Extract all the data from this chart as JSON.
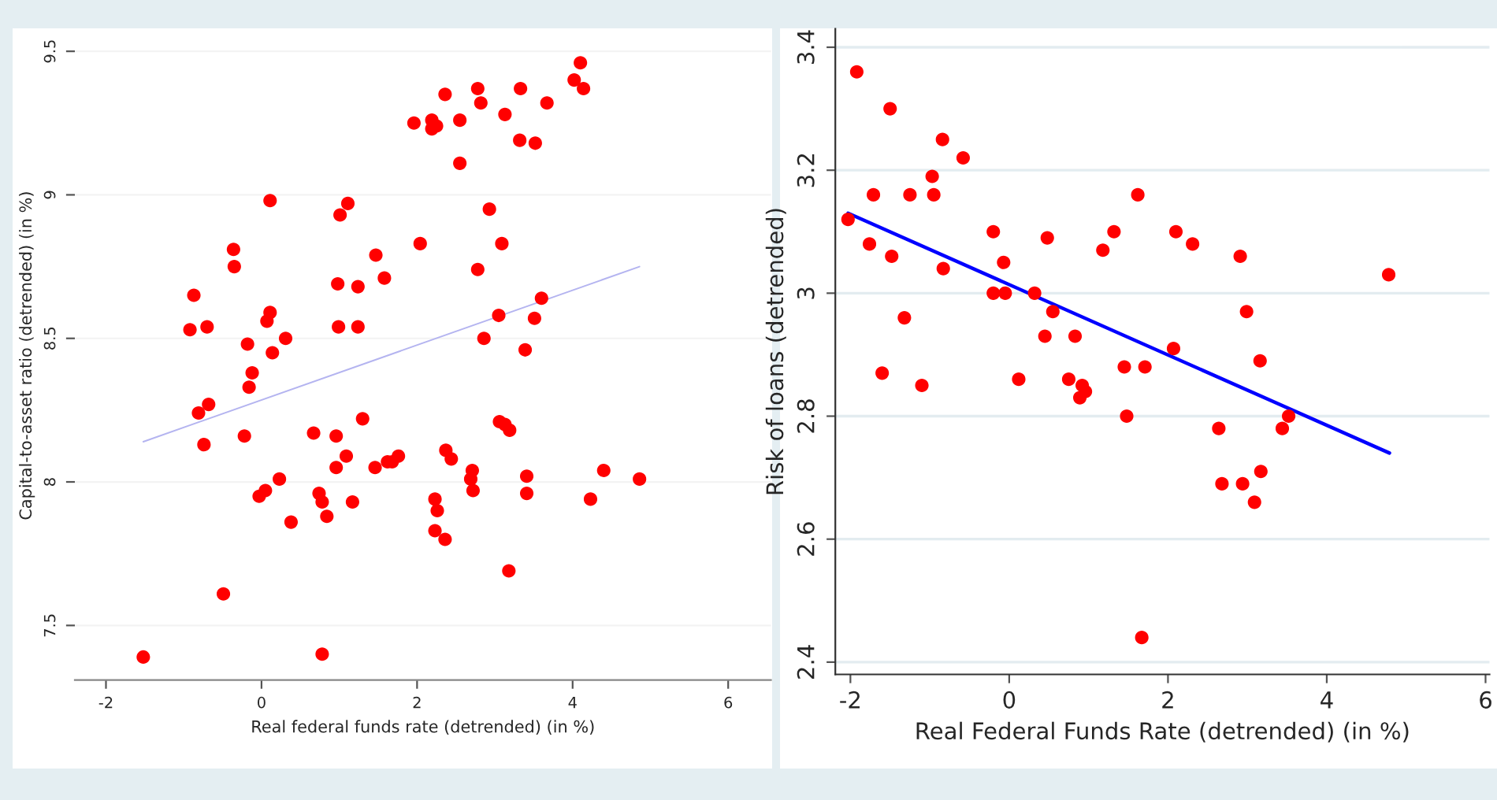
{
  "chart_data": [
    {
      "type": "scatter",
      "xlabel": "Real federal funds rate (detrended) (in %)",
      "ylabel": "Capital-to-asset ratio (detrended) (in %)",
      "xlim": [
        -2.4,
        6.55
      ],
      "ylim": [
        7.31,
        9.57
      ],
      "xticks": [
        -2,
        0,
        2,
        4,
        6
      ],
      "yticks": [
        7.5,
        8,
        8.5,
        9,
        9.5
      ],
      "grid": "y",
      "legend": false,
      "series": [
        {
          "marker": "circle",
          "color": "#ff0000",
          "x": [
            4.1,
            4.02,
            4.14,
            2.36,
            2.78,
            2.82,
            3.33,
            3.67,
            1.96,
            2.19,
            2.19,
            2.25,
            2.55,
            3.13,
            3.32,
            3.52,
            2.55,
            0.11,
            1.11,
            1.01,
            2.93,
            -0.36,
            -0.35,
            2.04,
            3.09,
            1.47,
            1.58,
            2.78,
            -0.87,
            0.98,
            1.24,
            3.6,
            3.05,
            3.51,
            -0.92,
            -0.7,
            0.11,
            0.07,
            0.99,
            1.24,
            0.31,
            -0.18,
            0.14,
            2.86,
            3.39,
            -0.12,
            -0.16,
            -0.81,
            -0.68,
            -0.74,
            -0.22,
            0.67,
            0.96,
            1.3,
            1.09,
            0.96,
            1.46,
            1.62,
            1.68,
            1.76,
            2.37,
            2.44,
            3.06,
            3.13,
            3.19,
            -0.03,
            0.05,
            0.23,
            0.74,
            0.78,
            0.84,
            1.17,
            0.38,
            2.23,
            2.26,
            2.23,
            2.36,
            2.69,
            2.71,
            2.72,
            3.41,
            3.41,
            4.23,
            4.4,
            4.86,
            3.18,
            -0.49,
            -1.52,
            0.78
          ],
          "values": [
            9.46,
            9.4,
            9.37,
            9.35,
            9.37,
            9.32,
            9.37,
            9.32,
            9.25,
            9.26,
            9.23,
            9.24,
            9.26,
            9.28,
            9.19,
            9.18,
            9.11,
            8.98,
            8.97,
            8.93,
            8.95,
            8.81,
            8.75,
            8.83,
            8.83,
            8.79,
            8.71,
            8.74,
            8.65,
            8.69,
            8.68,
            8.64,
            8.58,
            8.57,
            8.53,
            8.54,
            8.59,
            8.56,
            8.54,
            8.54,
            8.5,
            8.48,
            8.45,
            8.5,
            8.46,
            8.38,
            8.33,
            8.24,
            8.27,
            8.13,
            8.16,
            8.17,
            8.16,
            8.22,
            8.09,
            8.05,
            8.05,
            8.07,
            8.07,
            8.09,
            8.11,
            8.08,
            8.21,
            8.2,
            8.18,
            7.95,
            7.97,
            8.01,
            7.96,
            7.93,
            7.88,
            7.93,
            7.86,
            7.94,
            7.9,
            7.83,
            7.8,
            8.01,
            8.04,
            7.97,
            8.02,
            7.96,
            7.94,
            8.04,
            8.01,
            7.69,
            7.61,
            7.39,
            7.4
          ]
        },
        {
          "type": "line",
          "color": "#b4b4f0",
          "x": [
            -1.52,
            4.86
          ],
          "values": [
            8.14,
            8.75
          ]
        }
      ]
    },
    {
      "type": "scatter",
      "xlabel": "Real Federal Funds Rate (detrended) (in %)",
      "ylabel": "Risk of loans (detrended)",
      "xlim": [
        -2.19,
        6.05
      ],
      "ylim": [
        2.38,
        3.43
      ],
      "xticks": [
        -2,
        0,
        2,
        4,
        6
      ],
      "yticks": [
        2.4,
        2.6,
        2.8,
        3,
        3.2,
        3.4
      ],
      "grid": "y",
      "legend": false,
      "series": [
        {
          "marker": "circle",
          "color": "#ff0000",
          "x": [
            -1.92,
            -1.5,
            -0.84,
            -0.58,
            -0.97,
            -0.95,
            -1.71,
            -1.25,
            -2.03,
            -1.76,
            -1.48,
            -0.83,
            -0.2,
            0.48,
            -0.07,
            -0.2,
            -0.05,
            0.32,
            0.55,
            1.62,
            1.32,
            1.18,
            2.1,
            2.31,
            2.91,
            4.78,
            2.99,
            -1.32,
            0.45,
            0.83,
            2.07,
            3.16,
            1.45,
            1.71,
            -1.6,
            0.12,
            0.75,
            -1.1,
            0.92,
            0.96,
            0.89,
            1.48,
            2.64,
            3.52,
            3.44,
            2.68,
            2.94,
            3.17,
            3.09,
            1.67
          ],
          "values": [
            3.36,
            3.3,
            3.25,
            3.22,
            3.19,
            3.16,
            3.16,
            3.16,
            3.12,
            3.08,
            3.06,
            3.04,
            3.1,
            3.09,
            3.05,
            3.0,
            3.0,
            3.0,
            2.97,
            3.16,
            3.1,
            3.07,
            3.1,
            3.08,
            3.06,
            3.03,
            2.97,
            2.96,
            2.93,
            2.93,
            2.91,
            2.89,
            2.88,
            2.88,
            2.87,
            2.86,
            2.86,
            2.85,
            2.85,
            2.84,
            2.83,
            2.8,
            2.78,
            2.8,
            2.78,
            2.69,
            2.69,
            2.71,
            2.66,
            2.44
          ]
        },
        {
          "type": "line",
          "color": "#0000ff",
          "x": [
            -2.03,
            4.79
          ],
          "values": [
            3.13,
            2.74
          ]
        }
      ]
    }
  ]
}
